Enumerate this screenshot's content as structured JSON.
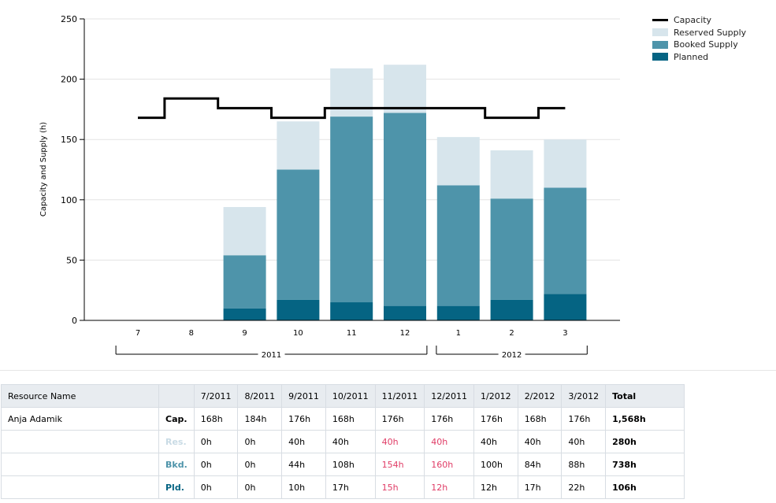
{
  "chart_data": {
    "type": "bar",
    "stacked": true,
    "categories": [
      "7",
      "8",
      "9",
      "10",
      "11",
      "12",
      "1",
      "2",
      "3"
    ],
    "year_groups": [
      {
        "label": "2011",
        "categories": [
          "7",
          "8",
          "9",
          "10",
          "11",
          "12"
        ]
      },
      {
        "label": "2012",
        "categories": [
          "1",
          "2",
          "3"
        ]
      }
    ],
    "ylabel": "Capacity and Supply (h)",
    "ylim": [
      0,
      250
    ],
    "yticks": [
      0,
      50,
      100,
      150,
      200,
      250
    ],
    "grid": true,
    "legend_position": "top-right",
    "series": [
      {
        "name": "Planned",
        "kind": "bar",
        "color": "#056483",
        "values": [
          0,
          0,
          10,
          17,
          15,
          12,
          12,
          17,
          22
        ]
      },
      {
        "name": "Booked Supply",
        "kind": "bar",
        "color": "#4e94aa",
        "values": [
          0,
          0,
          44,
          108,
          154,
          160,
          100,
          84,
          88
        ]
      },
      {
        "name": "Reserved Supply",
        "kind": "bar",
        "color": "#d7e5ec",
        "values": [
          0,
          0,
          40,
          40,
          40,
          40,
          40,
          40,
          40
        ]
      },
      {
        "name": "Capacity",
        "kind": "step-line",
        "color": "#000000",
        "values": [
          168,
          184,
          176,
          168,
          176,
          176,
          176,
          168,
          176
        ]
      }
    ],
    "legend": [
      "Capacity",
      "Reserved Supply",
      "Booked Supply",
      "Planned"
    ]
  },
  "table": {
    "header_resource": "Resource Name",
    "columns": [
      "7/2011",
      "8/2011",
      "9/2011",
      "10/2011",
      "11/2011",
      "12/2011",
      "1/2012",
      "2/2012",
      "3/2012"
    ],
    "header_total": "Total",
    "resource_name": "Anja Adamik",
    "rows": [
      {
        "label": "Cap.",
        "label_color": "#000000",
        "values": [
          "168h",
          "184h",
          "176h",
          "168h",
          "176h",
          "176h",
          "176h",
          "168h",
          "176h"
        ],
        "highlight": [
          false,
          false,
          false,
          false,
          false,
          false,
          false,
          false,
          false
        ],
        "total": "1,568h"
      },
      {
        "label": "Res.",
        "label_color": "#c9dbe5",
        "values": [
          "0h",
          "0h",
          "40h",
          "40h",
          "40h",
          "40h",
          "40h",
          "40h",
          "40h"
        ],
        "highlight": [
          false,
          false,
          false,
          false,
          true,
          true,
          false,
          false,
          false
        ],
        "total": "280h"
      },
      {
        "label": "Bkd.",
        "label_color": "#4e94aa",
        "values": [
          "0h",
          "0h",
          "44h",
          "108h",
          "154h",
          "160h",
          "100h",
          "84h",
          "88h"
        ],
        "highlight": [
          false,
          false,
          false,
          false,
          true,
          true,
          false,
          false,
          false
        ],
        "total": "738h"
      },
      {
        "label": "Pld.",
        "label_color": "#056483",
        "values": [
          "0h",
          "0h",
          "10h",
          "17h",
          "15h",
          "12h",
          "12h",
          "17h",
          "22h"
        ],
        "highlight": [
          false,
          false,
          false,
          false,
          true,
          true,
          false,
          false,
          false
        ],
        "total": "106h"
      }
    ]
  }
}
